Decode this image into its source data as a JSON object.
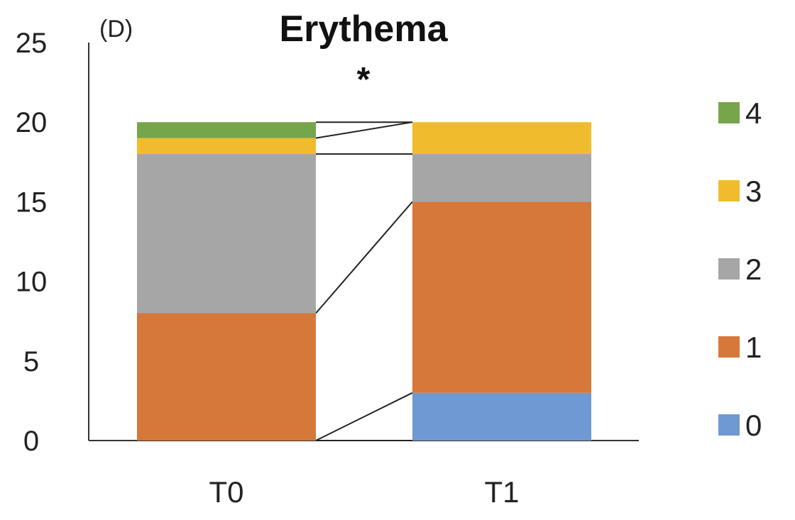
{
  "chart_data": {
    "type": "bar",
    "stacked": true,
    "panel_label": "(D)",
    "title": "Erythema",
    "significance_marker": "*",
    "categories": [
      "T0",
      "T1"
    ],
    "ylim": [
      0,
      25
    ],
    "yticks": [
      0,
      5,
      10,
      15,
      20,
      25
    ],
    "grid": false,
    "legend_position": "right",
    "connector_lines": true,
    "series": [
      {
        "name": "0",
        "color": "#6f99d2",
        "values": [
          0,
          3
        ]
      },
      {
        "name": "1",
        "color": "#d6783a",
        "values": [
          8,
          12
        ]
      },
      {
        "name": "2",
        "color": "#a6a6a6",
        "values": [
          10,
          3
        ]
      },
      {
        "name": "3",
        "color": "#f0bc2e",
        "values": [
          1,
          2
        ]
      },
      {
        "name": "4",
        "color": "#77a54b",
        "values": [
          1,
          0
        ]
      }
    ],
    "xlabel": "",
    "ylabel": ""
  }
}
